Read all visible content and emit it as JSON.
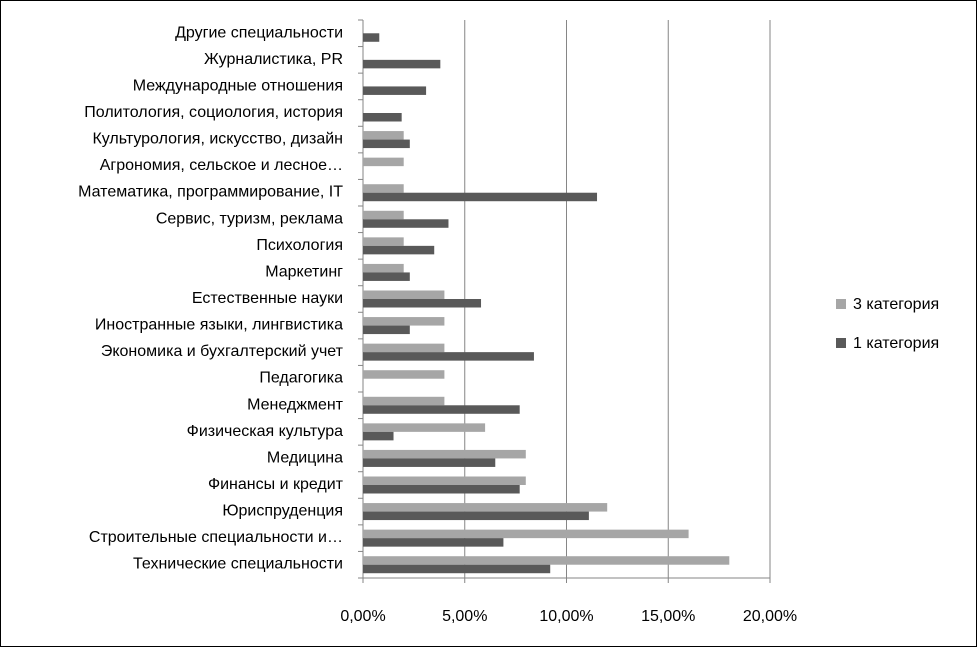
{
  "chart_data": {
    "type": "bar",
    "orientation": "horizontal",
    "categories": [
      "Технические специальности",
      "Строительные специальности и…",
      "Юриспруденция",
      "Финансы и кредит",
      "Медицина",
      "Физическая культура",
      "Менеджмент",
      "Педагогика",
      "Экономика и бухгалтерский учет",
      "Иностранные языки, лингвистика",
      "Естественные науки ",
      "Маркетинг",
      "Психология",
      "Сервис, туризм, реклама",
      "Математика, программирование, IT",
      "Агрономия, сельское и лесное…",
      "Культурология, искусство, дизайн",
      "Политология, социология, история",
      "Международные отношения",
      "Журналистика, PR",
      "Другие специальности"
    ],
    "series": [
      {
        "name": "3 категория",
        "color": "#a6a6a6",
        "values": [
          18.0,
          16.0,
          12.0,
          8.0,
          8.0,
          6.0,
          4.0,
          4.0,
          4.0,
          4.0,
          4.0,
          2.0,
          2.0,
          2.0,
          2.0,
          2.0,
          2.0,
          0,
          0,
          0,
          0
        ]
      },
      {
        "name": "1 категория",
        "color": "#595959",
        "values": [
          9.2,
          6.9,
          11.1,
          7.7,
          6.5,
          1.5,
          7.7,
          0,
          8.4,
          2.3,
          5.8,
          2.3,
          3.5,
          4.2,
          11.5,
          0,
          2.3,
          1.9,
          3.1,
          3.8,
          0.8
        ]
      }
    ],
    "xticks": [
      "0,00%",
      "5,00%",
      "10,00%",
      "15,00%",
      "20,00%"
    ],
    "xlim": [
      0,
      20
    ],
    "grid": true,
    "legend": "right"
  }
}
